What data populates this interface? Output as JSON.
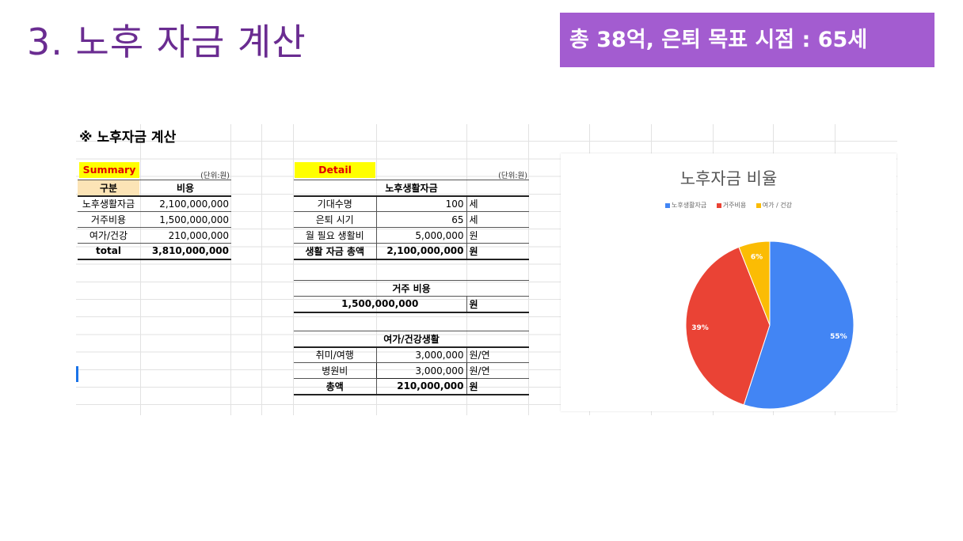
{
  "slide": {
    "title": "3. 노후 자금 계산",
    "banner": "총 38억, 은퇴 목표 시점  : 65세"
  },
  "sheet": {
    "title": "※ 노후자금 계산",
    "summary": {
      "label": "Summary",
      "unit": "(단위:원)",
      "headers": [
        "구분",
        "비용"
      ],
      "rows": [
        {
          "item": "노후생활자금",
          "cost": "2,100,000,000"
        },
        {
          "item": "거주비용",
          "cost": "1,500,000,000"
        },
        {
          "item": "여가/건강",
          "cost": "210,000,000"
        }
      ],
      "total": {
        "item": "total",
        "cost": "3,810,000,000"
      }
    },
    "detail": {
      "label": "Detail",
      "unit": "(단위:원)",
      "living": {
        "title": "노후생활자금",
        "rows": [
          {
            "label": "기대수명",
            "value": "100",
            "unit": "세"
          },
          {
            "label": "은퇴 시기",
            "value": "65",
            "unit": "세"
          },
          {
            "label": "월 필요 생활비",
            "value": "5,000,000",
            "unit": "원"
          }
        ],
        "total": {
          "label": "생활 자금 총액",
          "value": "2,100,000,000",
          "unit": "원"
        }
      },
      "housing": {
        "title": "거주 비용",
        "value": "1,500,000,000",
        "unit": "원"
      },
      "leisure": {
        "title": "여가/건강생활",
        "rows": [
          {
            "label": "취미/여행",
            "value": "3,000,000",
            "unit": "원/연"
          },
          {
            "label": "병원비",
            "value": "3,000,000",
            "unit": "원/연"
          }
        ],
        "total": {
          "label": "총액",
          "value": "210,000,000",
          "unit": "원"
        }
      }
    }
  },
  "chart_data": {
    "type": "pie",
    "title": "노후자금 비율",
    "categories": [
      "노후생활자금",
      "거주비용",
      "여가 / 건강"
    ],
    "values": [
      55,
      39,
      6
    ],
    "labels": [
      "55%",
      "39%",
      "6%"
    ],
    "colors": [
      "#4285f4",
      "#ea4335",
      "#fbbc04"
    ],
    "legend": "top"
  }
}
